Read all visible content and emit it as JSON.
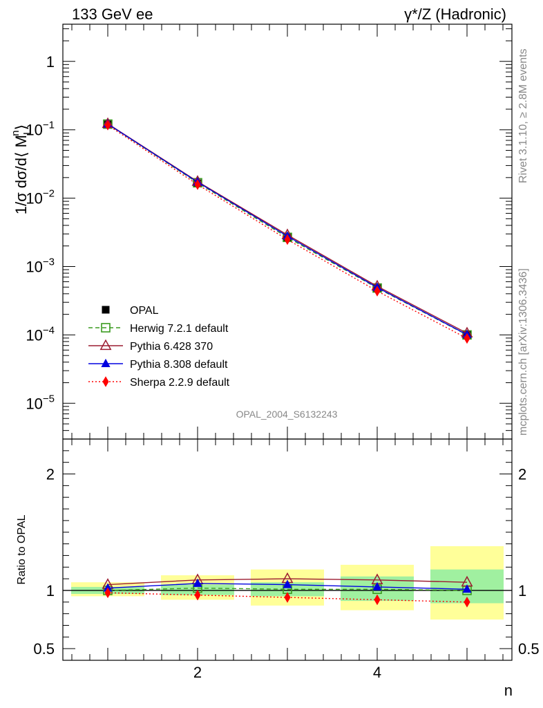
{
  "header": {
    "left": "133 GeV ee",
    "right": "γ*/Z (Hadronic)"
  },
  "side": {
    "rivet": "Rivet 3.1.10, ≥ 2.8M events",
    "mcplots": "mcplots.cern.ch [arXiv:1306.3436]"
  },
  "watermark": "OPAL_2004_S6132243",
  "chart_data": [
    {
      "type": "line",
      "panel": "main",
      "title": "",
      "xlabel": "n",
      "ylabel": "1/σ dσ/d⟨ M_L^n ⟩",
      "ylabel_parts": {
        "main": "1/σ dσ/d⟨ M",
        "sub": "L",
        "sup": "n",
        "close": "⟩"
      },
      "yscale": "log",
      "xlim": [
        0.5,
        5.5
      ],
      "ylim": [
        3e-06,
        3.5
      ],
      "yticks": [
        {
          "value": 1,
          "label": "1",
          "base": "",
          "exp": ""
        },
        {
          "value": 0.1,
          "label": "",
          "base": "10",
          "exp": "−1"
        },
        {
          "value": 0.01,
          "label": "",
          "base": "10",
          "exp": "−2"
        },
        {
          "value": 0.001,
          "label": "",
          "base": "10",
          "exp": "−3"
        },
        {
          "value": 0.0001,
          "label": "",
          "base": "10",
          "exp": "−4"
        },
        {
          "value": 1e-05,
          "label": "",
          "base": "10",
          "exp": "−5"
        }
      ],
      "x": [
        1,
        2,
        3,
        4,
        5
      ],
      "series": [
        {
          "name": "OPAL",
          "color": "#000000",
          "marker": "square-filled",
          "line": "none",
          "values": [
            0.12,
            0.0165,
            0.00265,
            0.00048,
            0.0001
          ]
        },
        {
          "name": "Herwig 7.2.1 default",
          "color": "#3a9a1e",
          "marker": "square-open",
          "line": "dashed",
          "values": [
            0.121,
            0.0168,
            0.00267,
            0.000485,
            0.0001
          ]
        },
        {
          "name": "Pythia 6.428 370",
          "color": "#9b1b30",
          "marker": "triangle-open",
          "line": "solid",
          "values": [
            0.1225,
            0.0175,
            0.0029,
            0.000515,
            0.000106
          ]
        },
        {
          "name": "Pythia 8.308 default",
          "color": "#0000e0",
          "marker": "triangle-filled",
          "line": "solid",
          "values": [
            0.1215,
            0.0172,
            0.00278,
            0.000495,
            0.000101
          ]
        },
        {
          "name": "Sherpa 2.2.9 default",
          "color": "#ff0000",
          "marker": "diamond-filled",
          "line": "dotted",
          "values": [
            0.1172,
            0.0158,
            0.00248,
            0.000437,
            8.9e-05
          ]
        }
      ]
    },
    {
      "type": "line",
      "panel": "ratio",
      "xlabel": "n",
      "ylabel": "Ratio to OPAL",
      "xlim": [
        0.5,
        5.5
      ],
      "ylim": [
        0.4,
        2.3
      ],
      "xticks": [
        2,
        4
      ],
      "yticks": [
        {
          "value": 0.5,
          "label": "0.5"
        },
        {
          "value": 1,
          "label": "1"
        },
        {
          "value": 2,
          "label": "2"
        }
      ],
      "x": [
        1,
        2,
        3,
        4,
        5
      ],
      "bands": {
        "edges": [
          0.5,
          1.5,
          2.5,
          3.5,
          4.5,
          5.5
        ],
        "inner": [
          [
            0.97,
            1.03
          ],
          [
            0.96,
            1.05
          ],
          [
            0.95,
            1.07
          ],
          [
            0.91,
            1.12
          ],
          [
            0.89,
            1.18
          ]
        ],
        "outer": [
          [
            0.95,
            1.07
          ],
          [
            0.92,
            1.13
          ],
          [
            0.87,
            1.18
          ],
          [
            0.83,
            1.22
          ],
          [
            0.75,
            1.38
          ]
        ],
        "inner_color": "#a0f0a0",
        "outer_color": "#ffff99"
      },
      "series": [
        {
          "name": "Herwig 7.2.1 default",
          "color": "#3a9a1e",
          "marker": "square-open",
          "line": "dashed",
          "values": [
            1.0,
            1.02,
            1.01,
            1.01,
            1.0
          ]
        },
        {
          "name": "Pythia 6.428 370",
          "color": "#9b1b30",
          "marker": "triangle-open",
          "line": "solid",
          "values": [
            1.05,
            1.09,
            1.1,
            1.09,
            1.07
          ]
        },
        {
          "name": "Pythia 8.308 default",
          "color": "#0000e0",
          "marker": "triangle-filled",
          "line": "solid",
          "values": [
            1.02,
            1.06,
            1.05,
            1.03,
            1.01
          ]
        },
        {
          "name": "Sherpa 2.2.9 default",
          "color": "#ff0000",
          "marker": "diamond-filled",
          "line": "dotted",
          "values": [
            0.98,
            0.96,
            0.94,
            0.92,
            0.9
          ]
        }
      ]
    }
  ]
}
